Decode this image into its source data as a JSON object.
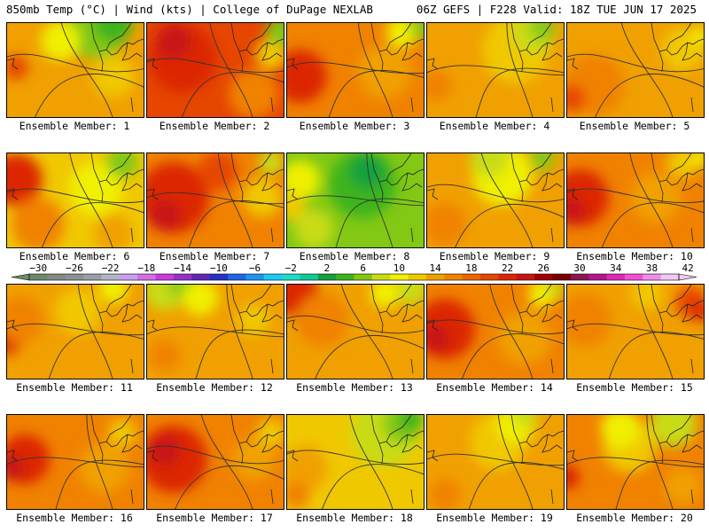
{
  "header": {
    "left_title": "850mb Temp (°C) | Wind (kts) | College of DuPage NEXLAB",
    "right_title": "06Z GEFS | F228 Valid: 18Z TUE JUN 17 2025"
  },
  "colorbar": {
    "tick_labels": [
      "−30",
      "−26",
      "−22",
      "−18",
      "−14",
      "−10",
      "−6",
      "−2",
      "2",
      "6",
      "10",
      "14",
      "18",
      "22",
      "26",
      "30",
      "34",
      "38",
      "42"
    ],
    "colors": [
      "#6b8a6b",
      "#808c80",
      "#8c9294",
      "#9aa0a8",
      "#b4b4c8",
      "#c8a0e6",
      "#d26ee6",
      "#c83cdc",
      "#9632c8",
      "#6428b4",
      "#2832c8",
      "#1e64e6",
      "#1e96f0",
      "#1ec8f0",
      "#1edcc8",
      "#14c896",
      "#14a03c",
      "#3cb41e",
      "#82c814",
      "#c8dc14",
      "#f0f000",
      "#f0c800",
      "#f0a000",
      "#f08200",
      "#f06400",
      "#e64600",
      "#dc2800",
      "#c81414",
      "#a00000",
      "#780000",
      "#8c1450",
      "#b4148c",
      "#dc28b4",
      "#f050d2",
      "#f08ce6",
      "#f0c8f0"
    ]
  },
  "panels": [
    {
      "label": "Ensemble Member: 1",
      "bg": "#f0a000",
      "blobs": [
        {
          "c": "#82c814",
          "x": 100,
          "y": 5,
          "r": 35
        },
        {
          "c": "#3cb41e",
          "x": 120,
          "y": 0,
          "r": 22
        },
        {
          "c": "#f0f000",
          "x": 60,
          "y": 20,
          "r": 22
        },
        {
          "c": "#e64600",
          "x": 10,
          "y": 50,
          "r": 14
        },
        {
          "c": "#f0c800",
          "x": 120,
          "y": 60,
          "r": 24
        }
      ]
    },
    {
      "label": "Ensemble Member: 2",
      "bg": "#e64600",
      "blobs": [
        {
          "c": "#dc2800",
          "x": 40,
          "y": 40,
          "r": 38
        },
        {
          "c": "#c81414",
          "x": 30,
          "y": 20,
          "r": 20
        },
        {
          "c": "#f08200",
          "x": 120,
          "y": 80,
          "r": 28
        },
        {
          "c": "#f0c800",
          "x": 140,
          "y": 35,
          "r": 18
        },
        {
          "c": "#82c814",
          "x": 150,
          "y": 10,
          "r": 16
        }
      ]
    },
    {
      "label": "Ensemble Member: 3",
      "bg": "#f08200",
      "blobs": [
        {
          "c": "#dc2800",
          "x": 15,
          "y": 60,
          "r": 30
        },
        {
          "c": "#f0a000",
          "x": 110,
          "y": 55,
          "r": 30
        },
        {
          "c": "#f0f000",
          "x": 130,
          "y": 10,
          "r": 18
        },
        {
          "c": "#82c814",
          "x": 150,
          "y": 5,
          "r": 12
        }
      ]
    },
    {
      "label": "Ensemble Member: 4",
      "bg": "#f0a000",
      "blobs": [
        {
          "c": "#f0c800",
          "x": 100,
          "y": 30,
          "r": 38
        },
        {
          "c": "#c8dc14",
          "x": 120,
          "y": 10,
          "r": 24
        },
        {
          "c": "#82c814",
          "x": 130,
          "y": 5,
          "r": 14
        },
        {
          "c": "#f08200",
          "x": 10,
          "y": 70,
          "r": 18
        }
      ]
    },
    {
      "label": "Ensemble Member: 5",
      "bg": "#f0a000",
      "blobs": [
        {
          "c": "#f08200",
          "x": 30,
          "y": 70,
          "r": 35
        },
        {
          "c": "#e64600",
          "x": 5,
          "y": 85,
          "r": 16
        },
        {
          "c": "#f0c800",
          "x": 130,
          "y": 30,
          "r": 24
        },
        {
          "c": "#f0f000",
          "x": 150,
          "y": 15,
          "r": 10
        }
      ]
    },
    {
      "label": "Ensemble Member: 6",
      "bg": "#f0c800",
      "blobs": [
        {
          "c": "#dc2800",
          "x": 10,
          "y": 30,
          "r": 30
        },
        {
          "c": "#f08200",
          "x": 35,
          "y": 80,
          "r": 30
        },
        {
          "c": "#f0f000",
          "x": 100,
          "y": 40,
          "r": 30
        },
        {
          "c": "#82c814",
          "x": 130,
          "y": 10,
          "r": 18
        },
        {
          "c": "#f0a000",
          "x": 120,
          "y": 90,
          "r": 22
        }
      ]
    },
    {
      "label": "Ensemble Member: 7",
      "bg": "#f08200",
      "blobs": [
        {
          "c": "#dc2800",
          "x": 30,
          "y": 50,
          "r": 40
        },
        {
          "c": "#c81414",
          "x": 20,
          "y": 70,
          "r": 18
        },
        {
          "c": "#e64600",
          "x": 80,
          "y": 20,
          "r": 22
        },
        {
          "c": "#f0c800",
          "x": 130,
          "y": 50,
          "r": 22
        },
        {
          "c": "#c8dc14",
          "x": 140,
          "y": 10,
          "r": 14
        }
      ]
    },
    {
      "label": "Ensemble Member: 8",
      "bg": "#82c814",
      "blobs": [
        {
          "c": "#3cb41e",
          "x": 85,
          "y": 35,
          "r": 38
        },
        {
          "c": "#14a03c",
          "x": 90,
          "y": 20,
          "r": 20
        },
        {
          "c": "#f0f000",
          "x": 15,
          "y": 30,
          "r": 22
        },
        {
          "c": "#f0c800",
          "x": 5,
          "y": 60,
          "r": 16
        },
        {
          "c": "#c8dc14",
          "x": 30,
          "y": 85,
          "r": 22
        }
      ]
    },
    {
      "label": "Ensemble Member: 9",
      "bg": "#f0a000",
      "blobs": [
        {
          "c": "#f0f000",
          "x": 85,
          "y": 25,
          "r": 34
        },
        {
          "c": "#c8dc14",
          "x": 70,
          "y": 5,
          "r": 22
        },
        {
          "c": "#82c814",
          "x": 130,
          "y": 5,
          "r": 14
        },
        {
          "c": "#f08200",
          "x": 20,
          "y": 80,
          "r": 24
        }
      ]
    },
    {
      "label": "Ensemble Member: 10",
      "bg": "#f08200",
      "blobs": [
        {
          "c": "#dc2800",
          "x": 15,
          "y": 50,
          "r": 32
        },
        {
          "c": "#c81414",
          "x": 5,
          "y": 65,
          "r": 16
        },
        {
          "c": "#f0a000",
          "x": 100,
          "y": 50,
          "r": 28
        },
        {
          "c": "#f0c800",
          "x": 130,
          "y": 10,
          "r": 18
        },
        {
          "c": "#f0f000",
          "x": 150,
          "y": 5,
          "r": 10
        }
      ]
    },
    {
      "label": "Ensemble Member: 11",
      "bg": "#f0a000",
      "blobs": [
        {
          "c": "#dc2800",
          "x": 0,
          "y": 60,
          "r": 18
        },
        {
          "c": "#f08200",
          "x": 15,
          "y": 40,
          "r": 26
        },
        {
          "c": "#f0c800",
          "x": 80,
          "y": 30,
          "r": 26
        },
        {
          "c": "#f0f000",
          "x": 120,
          "y": 5,
          "r": 16
        }
      ]
    },
    {
      "label": "Ensemble Member: 12",
      "bg": "#f0a000",
      "blobs": [
        {
          "c": "#c8dc14",
          "x": 20,
          "y": 5,
          "r": 24
        },
        {
          "c": "#82c814",
          "x": 40,
          "y": 0,
          "r": 16
        },
        {
          "c": "#f0f000",
          "x": 60,
          "y": 15,
          "r": 20
        },
        {
          "c": "#f08200",
          "x": 20,
          "y": 80,
          "r": 18
        },
        {
          "c": "#f0c800",
          "x": 120,
          "y": 40,
          "r": 18
        }
      ]
    },
    {
      "label": "Ensemble Member: 13",
      "bg": "#f0a000",
      "blobs": [
        {
          "c": "#dc2800",
          "x": 10,
          "y": 10,
          "r": 26
        },
        {
          "c": "#f08200",
          "x": 40,
          "y": 40,
          "r": 30
        },
        {
          "c": "#c8dc14",
          "x": 140,
          "y": 5,
          "r": 18
        },
        {
          "c": "#f0f000",
          "x": 110,
          "y": 10,
          "r": 16
        }
      ]
    },
    {
      "label": "Ensemble Member: 14",
      "bg": "#f08200",
      "blobs": [
        {
          "c": "#dc2800",
          "x": 20,
          "y": 50,
          "r": 34
        },
        {
          "c": "#c81414",
          "x": 10,
          "y": 60,
          "r": 16
        },
        {
          "c": "#f0a000",
          "x": 110,
          "y": 60,
          "r": 30
        },
        {
          "c": "#f0f000",
          "x": 130,
          "y": 10,
          "r": 16
        },
        {
          "c": "#c8dc14",
          "x": 145,
          "y": 5,
          "r": 10
        }
      ]
    },
    {
      "label": "Ensemble Member: 15",
      "bg": "#f0a000",
      "blobs": [
        {
          "c": "#f08200",
          "x": 20,
          "y": 40,
          "r": 30
        },
        {
          "c": "#e64600",
          "x": 140,
          "y": 20,
          "r": 18
        },
        {
          "c": "#dc2800",
          "x": 150,
          "y": 30,
          "r": 12
        },
        {
          "c": "#f0c800",
          "x": 90,
          "y": 10,
          "r": 18
        }
      ]
    },
    {
      "label": "Ensemble Member: 16",
      "bg": "#f08200",
      "blobs": [
        {
          "c": "#dc2800",
          "x": 20,
          "y": 50,
          "r": 28
        },
        {
          "c": "#c81414",
          "x": 5,
          "y": 60,
          "r": 14
        },
        {
          "c": "#f0a000",
          "x": 110,
          "y": 60,
          "r": 28
        },
        {
          "c": "#f0c800",
          "x": 130,
          "y": 20,
          "r": 16
        }
      ]
    },
    {
      "label": "Ensemble Member: 17",
      "bg": "#f08200",
      "blobs": [
        {
          "c": "#dc2800",
          "x": 30,
          "y": 50,
          "r": 38
        },
        {
          "c": "#c81414",
          "x": 20,
          "y": 40,
          "r": 18
        },
        {
          "c": "#f0a000",
          "x": 120,
          "y": 50,
          "r": 24
        },
        {
          "c": "#f0c800",
          "x": 140,
          "y": 20,
          "r": 16
        }
      ]
    },
    {
      "label": "Ensemble Member: 18",
      "bg": "#f0c800",
      "blobs": [
        {
          "c": "#c8dc14",
          "x": 110,
          "y": 20,
          "r": 38
        },
        {
          "c": "#82c814",
          "x": 130,
          "y": 10,
          "r": 22
        },
        {
          "c": "#3cb41e",
          "x": 140,
          "y": 5,
          "r": 14
        },
        {
          "c": "#f0a000",
          "x": 20,
          "y": 60,
          "r": 26
        },
        {
          "c": "#f08200",
          "x": 10,
          "y": 90,
          "r": 16
        }
      ]
    },
    {
      "label": "Ensemble Member: 19",
      "bg": "#f0a000",
      "blobs": [
        {
          "c": "#f0c800",
          "x": 80,
          "y": 30,
          "r": 32
        },
        {
          "c": "#f0f000",
          "x": 100,
          "y": 10,
          "r": 22
        },
        {
          "c": "#c8dc14",
          "x": 110,
          "y": 0,
          "r": 14
        },
        {
          "c": "#f08200",
          "x": 20,
          "y": 90,
          "r": 18
        }
      ]
    },
    {
      "label": "Ensemble Member: 20",
      "bg": "#f08200",
      "blobs": [
        {
          "c": "#f0c800",
          "x": 70,
          "y": 35,
          "r": 30
        },
        {
          "c": "#c8dc14",
          "x": 120,
          "y": 10,
          "r": 26
        },
        {
          "c": "#f0f000",
          "x": 60,
          "y": 15,
          "r": 22
        },
        {
          "c": "#dc2800",
          "x": 0,
          "y": 70,
          "r": 14
        },
        {
          "c": "#f0a000",
          "x": 130,
          "y": 80,
          "r": 20
        }
      ]
    }
  ]
}
